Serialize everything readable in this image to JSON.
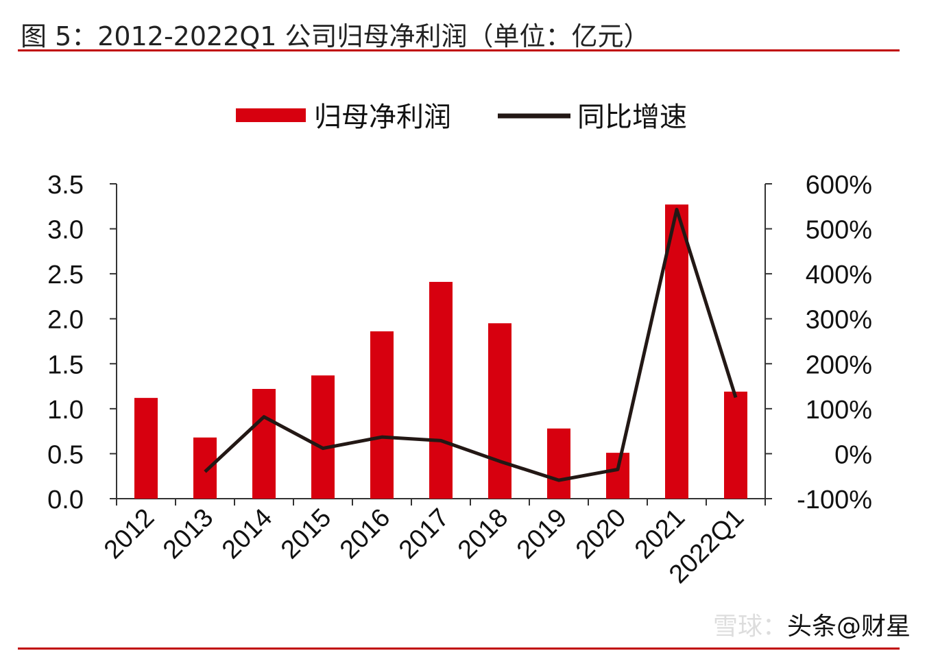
{
  "title": "图 5：2012-2022Q1 公司归母净利润（单位：亿元）",
  "watermark": {
    "left": "雪球：",
    "right": "头条@财星"
  },
  "colors": {
    "bar": "#d7000f",
    "line": "#231815",
    "rule": "#c00000"
  },
  "chart_data": {
    "type": "bar+line",
    "title": "",
    "categories": [
      "2012",
      "2013",
      "2014",
      "2015",
      "2016",
      "2017",
      "2018",
      "2019",
      "2020",
      "2021",
      "2022Q1"
    ],
    "series": [
      {
        "name": "归母净利润",
        "type": "bar",
        "axis": "left",
        "values": [
          1.12,
          0.68,
          1.22,
          1.37,
          1.86,
          2.41,
          1.95,
          0.78,
          0.51,
          3.27,
          1.19
        ]
      },
      {
        "name": "同比增速",
        "type": "line",
        "axis": "right",
        "values": [
          null,
          -40,
          82,
          12,
          37,
          29,
          -17,
          -59,
          -35,
          543,
          125
        ]
      }
    ],
    "left_axis": {
      "ylim": [
        0,
        3.5
      ],
      "ticks": [
        "0.0",
        "0.5",
        "1.0",
        "1.5",
        "2.0",
        "2.5",
        "3.0",
        "3.5"
      ]
    },
    "right_axis": {
      "ylim": [
        -100,
        600
      ],
      "ticks": [
        "-100%",
        "0%",
        "100%",
        "200%",
        "300%",
        "400%",
        "500%",
        "600%"
      ]
    },
    "legend_position": "top-center",
    "grid": false
  }
}
